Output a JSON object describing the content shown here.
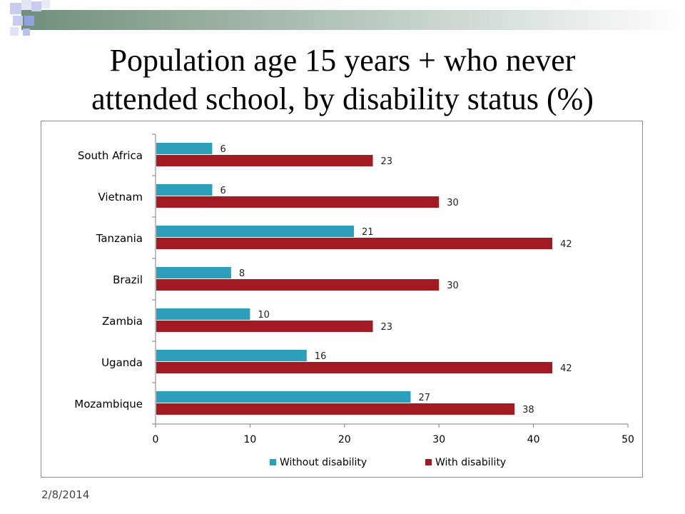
{
  "slide": {
    "title_line1": "Population age 15 years + who never",
    "title_line2": "attended school, by disability status (%)",
    "footer_date": "2/8/2014"
  },
  "colors": {
    "without_disability": "#2e9fba",
    "with_disability": "#a31b22",
    "deco_gradient_start": "#6f8f7a",
    "deco_square_light": "#c8cdf0",
    "deco_square_blue": "#8fa3e0"
  },
  "chart_data": {
    "type": "bar",
    "orientation": "horizontal",
    "title": "",
    "categories": [
      "South Africa",
      "Vietnam",
      "Tanzania",
      "Brazil",
      "Zambia",
      "Uganda",
      "Mozambique"
    ],
    "series": [
      {
        "name": "Without disability",
        "values": [
          6,
          6,
          21,
          8,
          10,
          16,
          27
        ]
      },
      {
        "name": "With disability",
        "values": [
          23,
          30,
          42,
          30,
          23,
          42,
          38
        ]
      }
    ],
    "xlim": [
      0,
      50
    ],
    "xticks": [
      0,
      10,
      20,
      30,
      40,
      50
    ],
    "xlabel": "",
    "ylabel": "",
    "grid": false,
    "data_labels": true,
    "legend_position": "bottom"
  }
}
